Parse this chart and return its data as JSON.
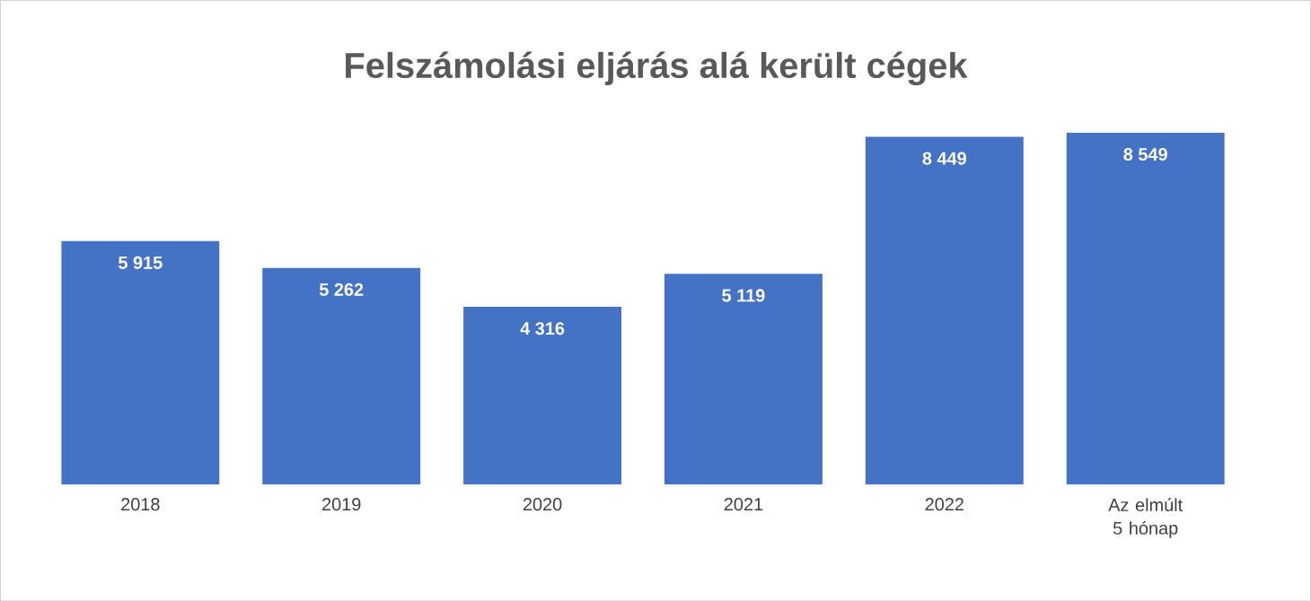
{
  "chart_data": {
    "type": "bar",
    "title": "Felszámolási eljárás alá került cégek",
    "categories": [
      "2018",
      "2019",
      "2020",
      "2021",
      "2022",
      "Az elmúlt 5 hónap"
    ],
    "values": [
      5915,
      5262,
      4316,
      5119,
      8449,
      8549
    ],
    "value_labels": [
      "5 915",
      "5 262",
      "4 316",
      "5 119",
      "8 449",
      "8 549"
    ],
    "color": "#4472c4"
  }
}
